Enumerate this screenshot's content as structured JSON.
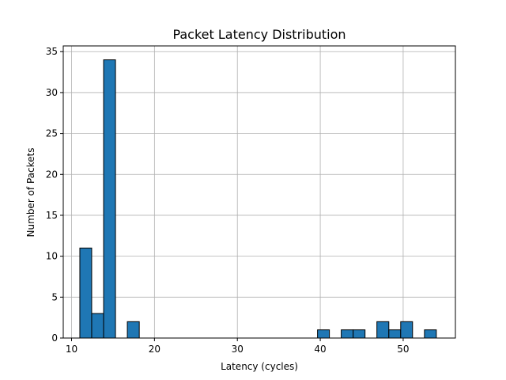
{
  "chart_data": {
    "type": "bar",
    "title": "Packet Latency Distribution",
    "xlabel": "Latency (cycles)",
    "ylabel": "Number of Packets",
    "xlim": [
      9,
      56.3
    ],
    "ylim": [
      0,
      35.7
    ],
    "xticks": [
      10,
      20,
      30,
      40,
      50
    ],
    "yticks": [
      0,
      5,
      10,
      15,
      20,
      25,
      30,
      35
    ],
    "grid": true,
    "bar_color": "#1f77b4",
    "edge_color": "#000000",
    "bins": [
      {
        "x0": 11.0,
        "x1": 12.43,
        "count": 11
      },
      {
        "x0": 12.43,
        "x1": 13.87,
        "count": 3
      },
      {
        "x0": 13.87,
        "x1": 15.3,
        "count": 34
      },
      {
        "x0": 16.73,
        "x1": 18.17,
        "count": 2
      },
      {
        "x0": 39.67,
        "x1": 41.1,
        "count": 1
      },
      {
        "x0": 42.53,
        "x1": 43.97,
        "count": 1
      },
      {
        "x0": 43.97,
        "x1": 45.4,
        "count": 1
      },
      {
        "x0": 46.83,
        "x1": 48.27,
        "count": 2
      },
      {
        "x0": 48.27,
        "x1": 49.7,
        "count": 1
      },
      {
        "x0": 49.7,
        "x1": 51.13,
        "count": 2
      },
      {
        "x0": 52.57,
        "x1": 54.0,
        "count": 1
      }
    ]
  }
}
